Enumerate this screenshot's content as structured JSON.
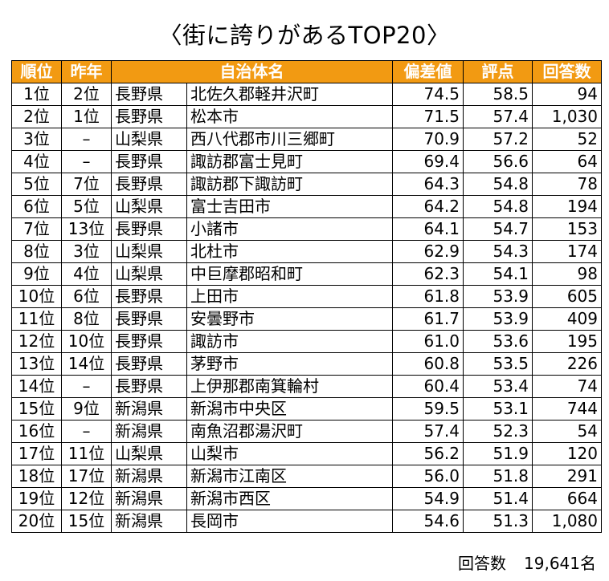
{
  "title": "〈街に誇りがあるTOP20〉",
  "table": {
    "headers": {
      "rank": "順位",
      "prev": "昨年",
      "municipality": "自治体名",
      "deviation": "偏差値",
      "score": "評点",
      "responses": "回答数"
    },
    "rows": [
      {
        "rank": "1位",
        "prev": "2位",
        "pref": "長野県",
        "muni": "北佐久郡軽井沢町",
        "dev": "74.5",
        "score": "58.5",
        "resp": "94"
      },
      {
        "rank": "2位",
        "prev": "1位",
        "pref": "長野県",
        "muni": "松本市",
        "dev": "71.5",
        "score": "57.4",
        "resp": "1,030"
      },
      {
        "rank": "3位",
        "prev": "–",
        "pref": "山梨県",
        "muni": "西八代郡市川三郷町",
        "dev": "70.9",
        "score": "57.2",
        "resp": "52"
      },
      {
        "rank": "4位",
        "prev": "–",
        "pref": "長野県",
        "muni": "諏訪郡富士見町",
        "dev": "69.4",
        "score": "56.6",
        "resp": "64"
      },
      {
        "rank": "5位",
        "prev": "7位",
        "pref": "長野県",
        "muni": "諏訪郡下諏訪町",
        "dev": "64.3",
        "score": "54.8",
        "resp": "78"
      },
      {
        "rank": "6位",
        "prev": "5位",
        "pref": "山梨県",
        "muni": "富士吉田市",
        "dev": "64.2",
        "score": "54.8",
        "resp": "194"
      },
      {
        "rank": "7位",
        "prev": "13位",
        "pref": "長野県",
        "muni": "小諸市",
        "dev": "64.1",
        "score": "54.7",
        "resp": "153"
      },
      {
        "rank": "8位",
        "prev": "3位",
        "pref": "山梨県",
        "muni": "北杜市",
        "dev": "62.9",
        "score": "54.3",
        "resp": "174"
      },
      {
        "rank": "9位",
        "prev": "4位",
        "pref": "山梨県",
        "muni": "中巨摩郡昭和町",
        "dev": "62.3",
        "score": "54.1",
        "resp": "98"
      },
      {
        "rank": "10位",
        "prev": "6位",
        "pref": "長野県",
        "muni": "上田市",
        "dev": "61.8",
        "score": "53.9",
        "resp": "605"
      },
      {
        "rank": "11位",
        "prev": "8位",
        "pref": "長野県",
        "muni": "安曇野市",
        "dev": "61.7",
        "score": "53.9",
        "resp": "409"
      },
      {
        "rank": "12位",
        "prev": "10位",
        "pref": "長野県",
        "muni": "諏訪市",
        "dev": "61.0",
        "score": "53.6",
        "resp": "195"
      },
      {
        "rank": "13位",
        "prev": "14位",
        "pref": "長野県",
        "muni": "茅野市",
        "dev": "60.8",
        "score": "53.5",
        "resp": "226"
      },
      {
        "rank": "14位",
        "prev": "–",
        "pref": "長野県",
        "muni": "上伊那郡南箕輪村",
        "dev": "60.4",
        "score": "53.4",
        "resp": "74"
      },
      {
        "rank": "15位",
        "prev": "9位",
        "pref": "新潟県",
        "muni": "新潟市中央区",
        "dev": "59.5",
        "score": "53.1",
        "resp": "744"
      },
      {
        "rank": "16位",
        "prev": "–",
        "pref": "新潟県",
        "muni": "南魚沼郡湯沢町",
        "dev": "57.4",
        "score": "52.3",
        "resp": "54"
      },
      {
        "rank": "17位",
        "prev": "11位",
        "pref": "山梨県",
        "muni": "山梨市",
        "dev": "56.2",
        "score": "51.9",
        "resp": "120"
      },
      {
        "rank": "18位",
        "prev": "17位",
        "pref": "新潟県",
        "muni": "新潟市江南区",
        "dev": "56.0",
        "score": "51.8",
        "resp": "291"
      },
      {
        "rank": "19位",
        "prev": "12位",
        "pref": "新潟県",
        "muni": "新潟市西区",
        "dev": "54.9",
        "score": "51.4",
        "resp": "664"
      },
      {
        "rank": "20位",
        "prev": "15位",
        "pref": "新潟県",
        "muni": "長岡市",
        "dev": "54.6",
        "score": "51.3",
        "resp": "1,080"
      }
    ]
  },
  "footer": {
    "label": "回答数",
    "value": "19,641名"
  },
  "colors": {
    "header_bg": "#f29a12",
    "header_text": "#ffffff"
  }
}
